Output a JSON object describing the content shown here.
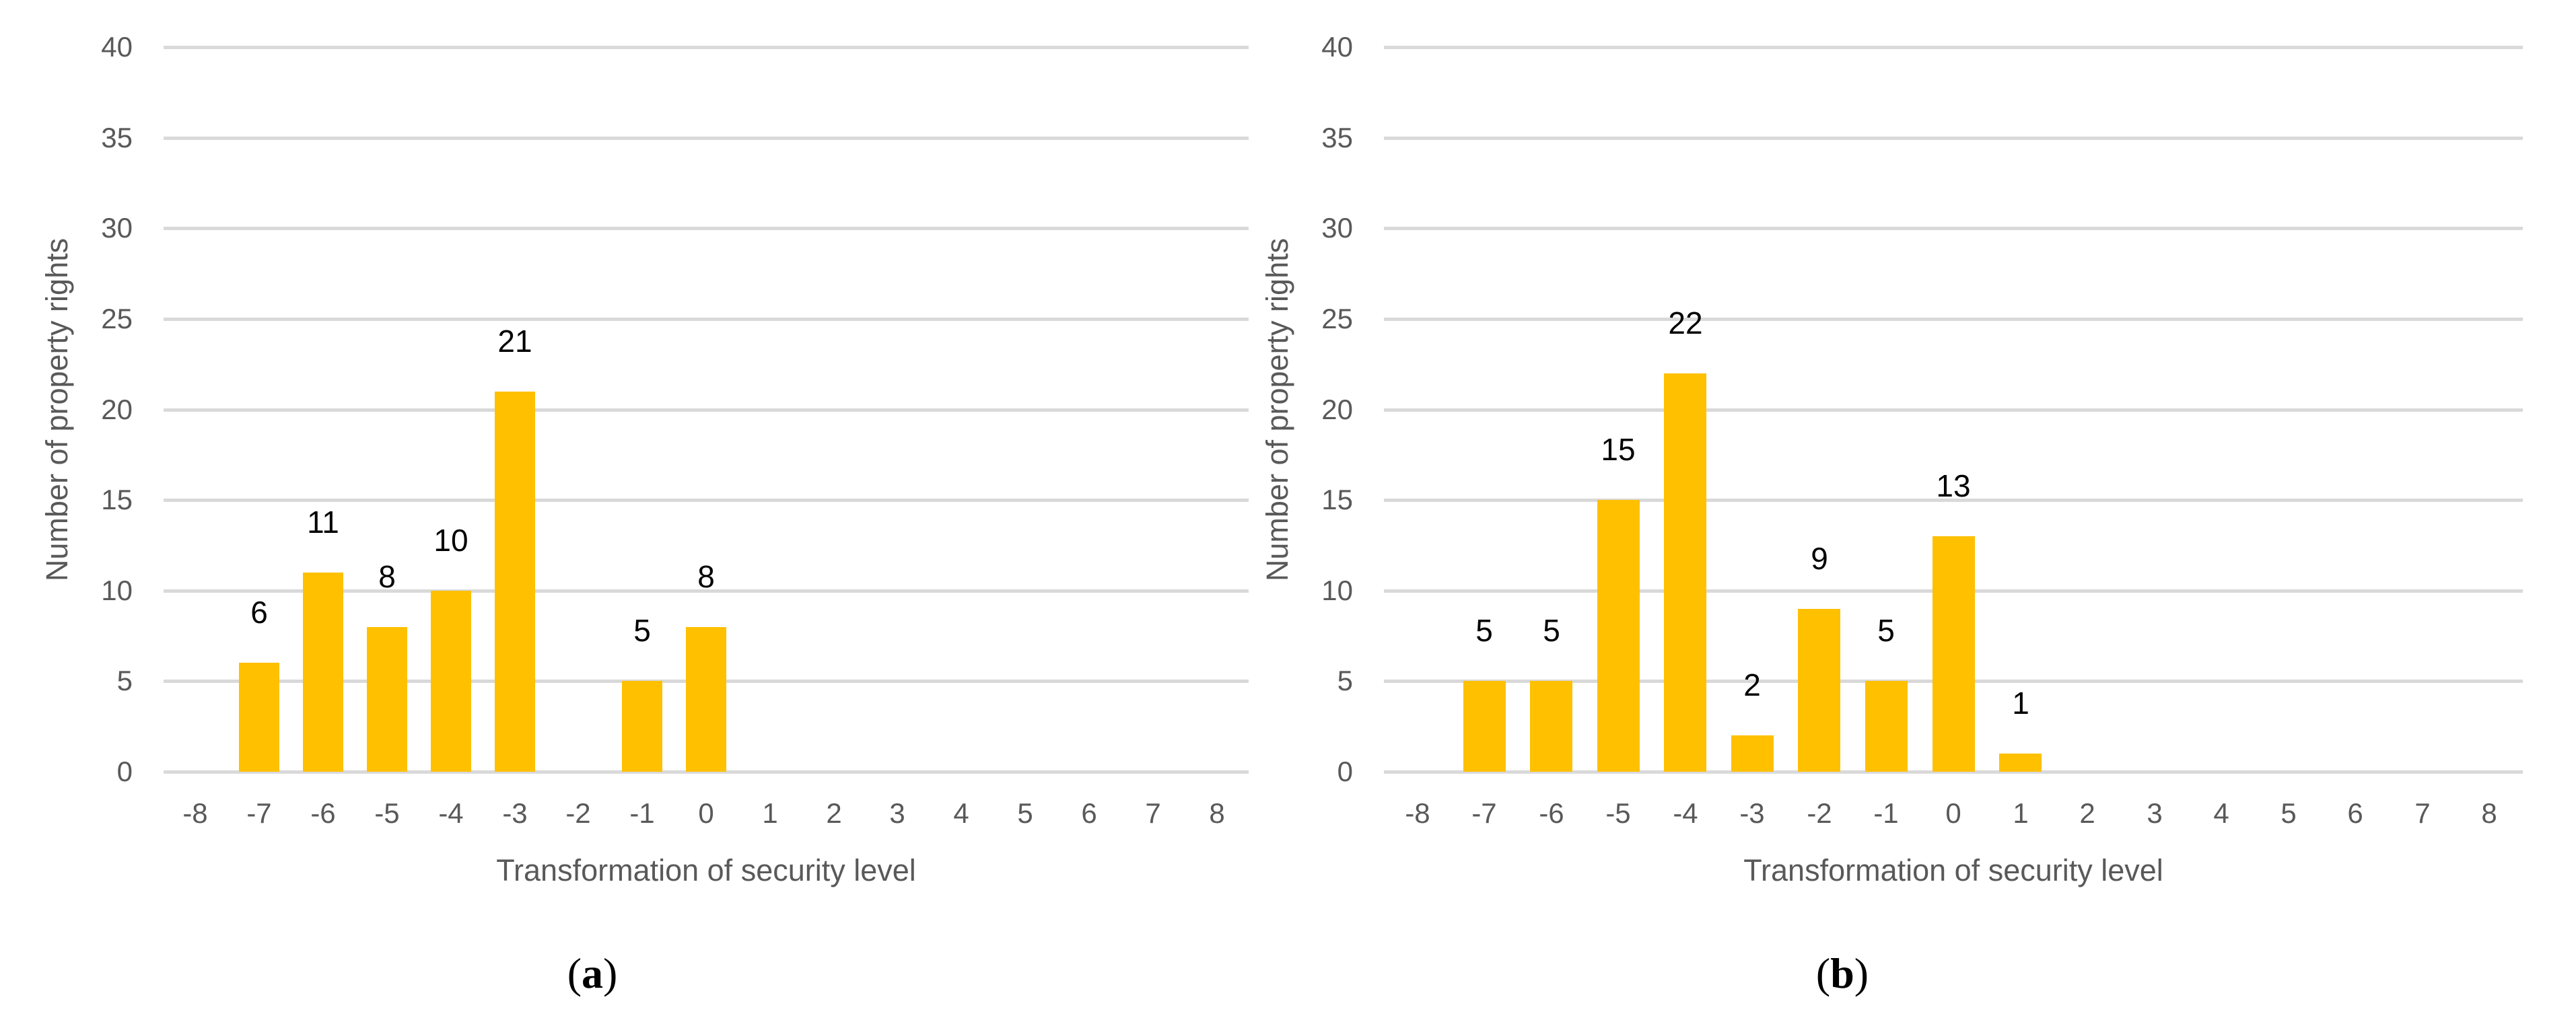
{
  "figure": {
    "background": "#FFFFFF",
    "colors": {
      "bar": "#FFC000",
      "gridline": "#D9D9D9",
      "axis_text": "#595959",
      "data_label": "#000000"
    }
  },
  "chart_data": [
    {
      "id": "a",
      "type": "bar",
      "title": "",
      "xlabel": "Transformation of security level",
      "ylabel": "Number of property rights",
      "categories": [
        "-8",
        "-7",
        "-6",
        "-5",
        "-4",
        "-3",
        "-2",
        "-1",
        "0",
        "1",
        "2",
        "3",
        "4",
        "5",
        "6",
        "7",
        "8"
      ],
      "values": [
        null,
        6,
        11,
        8,
        10,
        21,
        null,
        5,
        8,
        null,
        null,
        null,
        null,
        null,
        null,
        null,
        null
      ],
      "ylim": [
        0,
        40
      ],
      "ytick_step": 5,
      "yticks": [
        0,
        5,
        10,
        15,
        20,
        25,
        30,
        35,
        40
      ],
      "grid": true,
      "legend_position": "none",
      "data_labels": true,
      "sublabel": {
        "open": "(",
        "letter": "a",
        "close": ")"
      }
    },
    {
      "id": "b",
      "type": "bar",
      "title": "",
      "xlabel": "Transformation of security level",
      "ylabel": "Number of property rights",
      "categories": [
        "-8",
        "-7",
        "-6",
        "-5",
        "-4",
        "-3",
        "-2",
        "-1",
        "0",
        "1",
        "2",
        "3",
        "4",
        "5",
        "6",
        "7",
        "8"
      ],
      "values": [
        null,
        5,
        5,
        15,
        22,
        2,
        9,
        5,
        13,
        1,
        null,
        null,
        null,
        null,
        null,
        null,
        null
      ],
      "ylim": [
        0,
        40
      ],
      "ytick_step": 5,
      "yticks": [
        0,
        5,
        10,
        15,
        20,
        25,
        30,
        35,
        40
      ],
      "grid": true,
      "legend_position": "none",
      "data_labels": true,
      "sublabel": {
        "open": "(",
        "letter": "b",
        "close": ")"
      }
    }
  ]
}
